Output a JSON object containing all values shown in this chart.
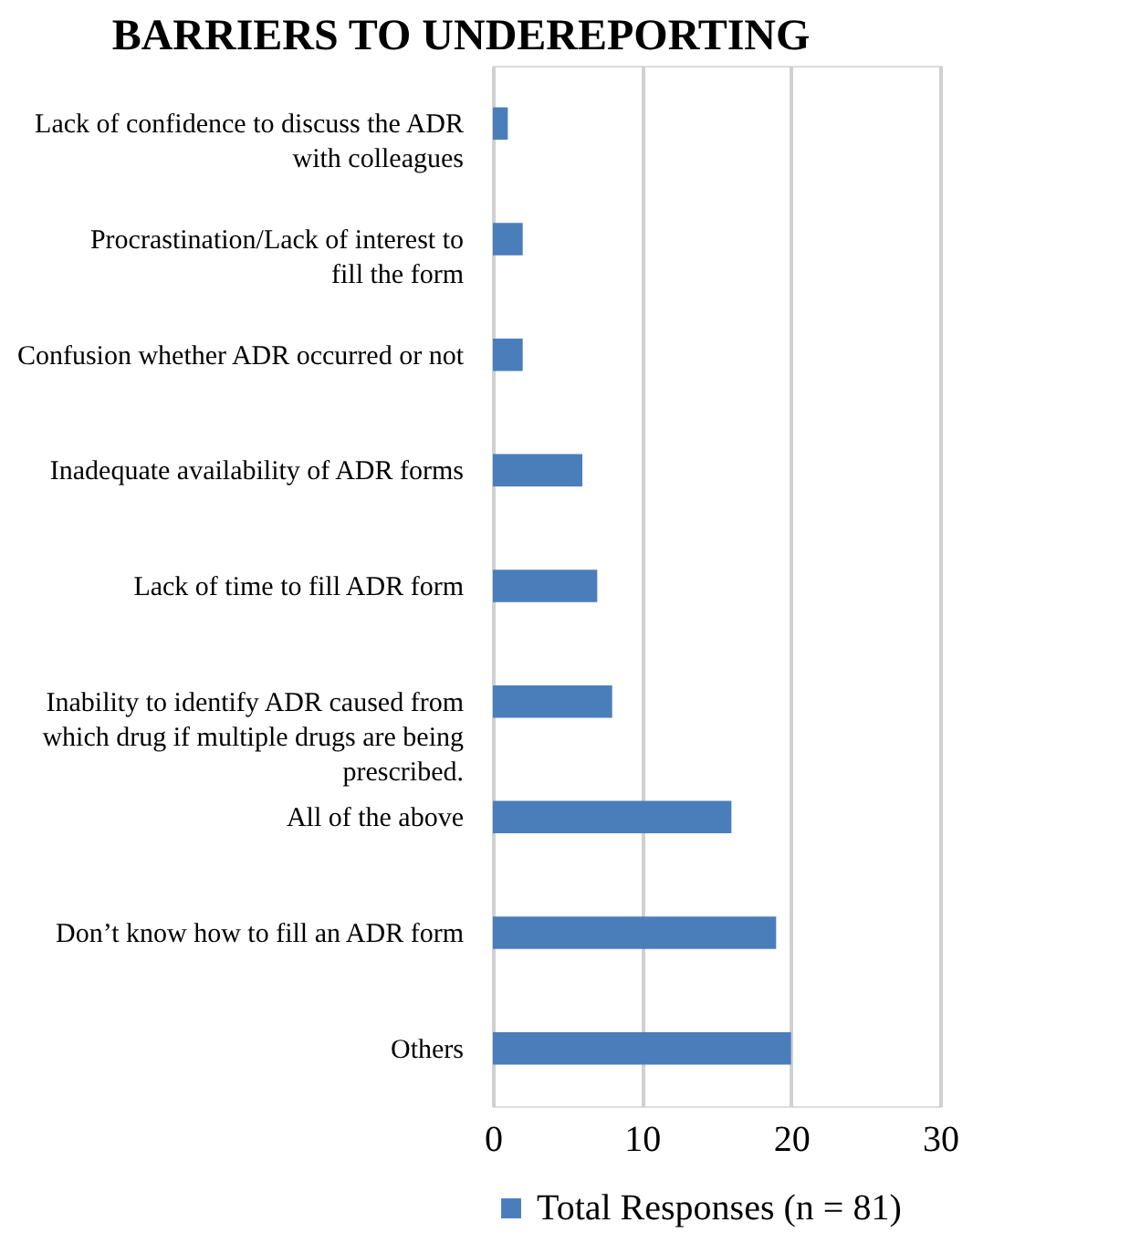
{
  "chart_data": {
    "type": "bar",
    "orientation": "horizontal",
    "title": "BARRIERS TO UNDEREPORTING",
    "categories": [
      "Lack of confidence to discuss the ADR with colleagues",
      "Procrastination/Lack of interest to fill the form",
      "Confusion whether ADR occurred or not",
      "Inadequate availability of ADR forms",
      "Lack of time to fill ADR form",
      "Inability to identify ADR caused from which drug if multiple drugs are being prescribed.",
      "All of the above",
      "Don’t know how to fill an ADR form",
      "Others"
    ],
    "series": [
      {
        "name": "Total Responses  (n = 81)",
        "color": "#4a7ebb",
        "values": [
          1,
          2,
          2,
          6,
          7,
          8,
          16,
          19,
          20
        ]
      }
    ],
    "xlim": [
      0,
      30
    ],
    "xticks": [
      0,
      10,
      20,
      30
    ],
    "grid": "x",
    "legend": "bottom"
  }
}
